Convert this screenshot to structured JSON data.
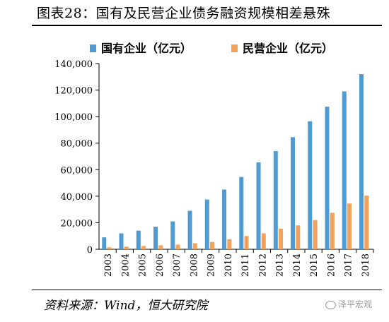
{
  "header": {
    "title": "图表28：国有及民营企业债务融资规模相差悬殊"
  },
  "footer": {
    "source": "资料来源：Wind，恒大研究院",
    "watermark": "泽平宏观"
  },
  "colors": {
    "state": "#4F9BD2",
    "private": "#F4A15B",
    "axis": "#000000"
  },
  "chart_data": {
    "type": "bar",
    "categories": [
      "2003",
      "2004",
      "2005",
      "2006",
      "2007",
      "2008",
      "2009",
      "2010",
      "2011",
      "2012",
      "2013",
      "2014",
      "2015",
      "2016",
      "2017",
      "2018"
    ],
    "series": [
      {
        "name": "国有企业（亿元）",
        "values": [
          9000,
          12000,
          14000,
          17000,
          21000,
          29000,
          37500,
          45000,
          54500,
          65500,
          74000,
          84500,
          96500,
          107500,
          119000,
          132000
        ]
      },
      {
        "name": "民营企业（亿元）",
        "values": [
          1500,
          2000,
          2500,
          3000,
          3500,
          4500,
          5500,
          7500,
          10000,
          12000,
          15500,
          18000,
          22000,
          27500,
          34500,
          40500
        ]
      }
    ],
    "ylim": [
      0,
      140000
    ],
    "yticks": [
      "0",
      "20,000",
      "40,000",
      "60,000",
      "80,000",
      "100,000",
      "120,000",
      "140,000"
    ],
    "legend_position": "top",
    "grid": false
  }
}
